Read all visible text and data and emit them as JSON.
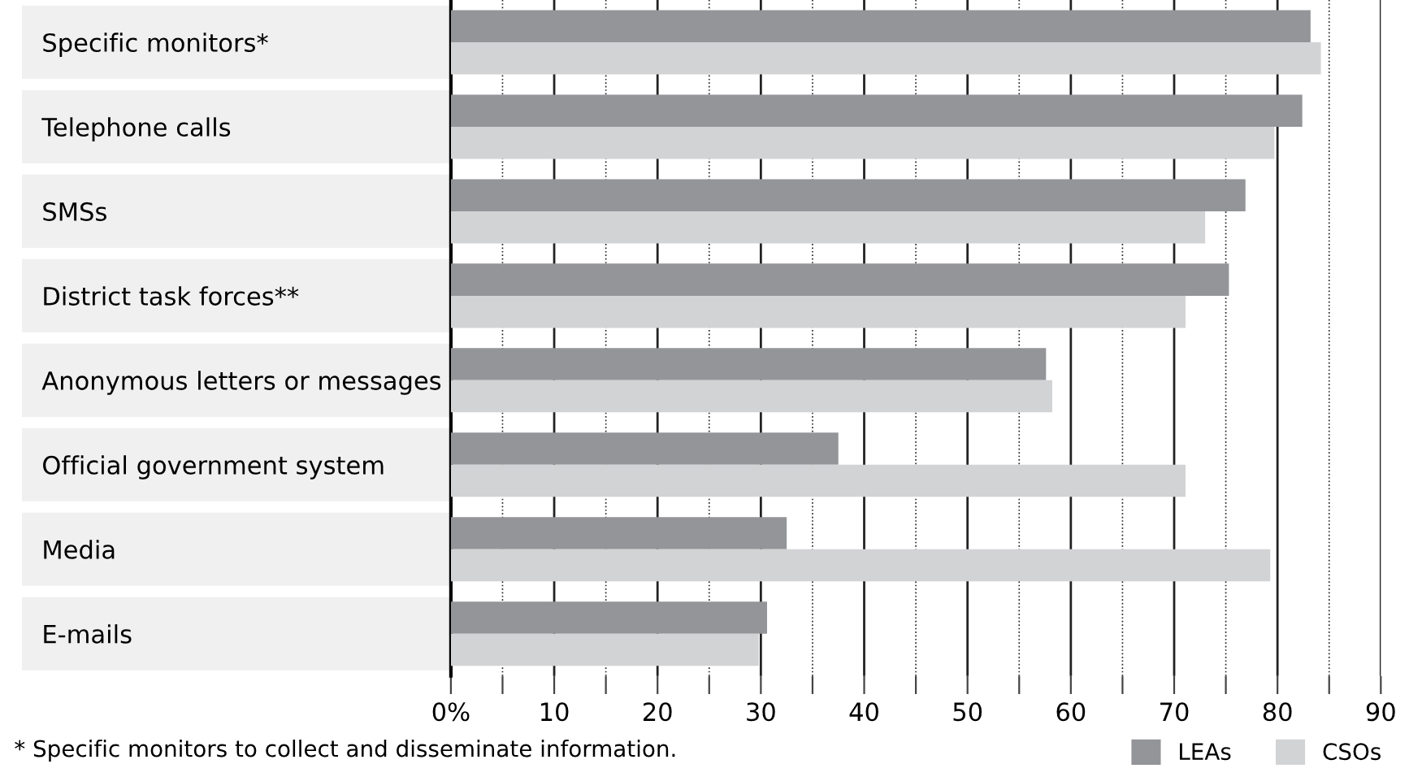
{
  "chart_data": {
    "type": "bar",
    "orientation": "horizontal",
    "categories": [
      "Specific monitors*",
      "Telephone calls",
      "SMSs",
      "District task forces**",
      "Anonymous letters or messages",
      "Official government system",
      "Media",
      "E-mails"
    ],
    "series": [
      {
        "name": "LEAs",
        "color": "#949599",
        "values": [
          83.2,
          82.4,
          76.9,
          75.3,
          57.6,
          37.5,
          32.5,
          30.6
        ]
      },
      {
        "name": "CSOs",
        "color": "#d2d3d5",
        "values": [
          84.2,
          79.7,
          73.0,
          71.1,
          58.2,
          71.1,
          79.3,
          29.8
        ]
      }
    ],
    "xlim": [
      0,
      90
    ],
    "xticks": [
      {
        "value": 0,
        "label": "0%"
      },
      {
        "value": 5,
        "label": null
      },
      10,
      {
        "value": 15,
        "label": null
      },
      20,
      {
        "value": 25,
        "label": null
      },
      30,
      {
        "value": 35,
        "label": null
      },
      40,
      {
        "value": 45,
        "label": null
      },
      50,
      {
        "value": 55,
        "label": null
      },
      60,
      {
        "value": 65,
        "label": null
      },
      70,
      {
        "value": 75,
        "label": null
      },
      80,
      {
        "value": 85,
        "label": null
      },
      90
    ],
    "grid": "x",
    "legend": "bottom right",
    "annotations": [
      "* Specific monitors to collect and disseminate information."
    ]
  }
}
